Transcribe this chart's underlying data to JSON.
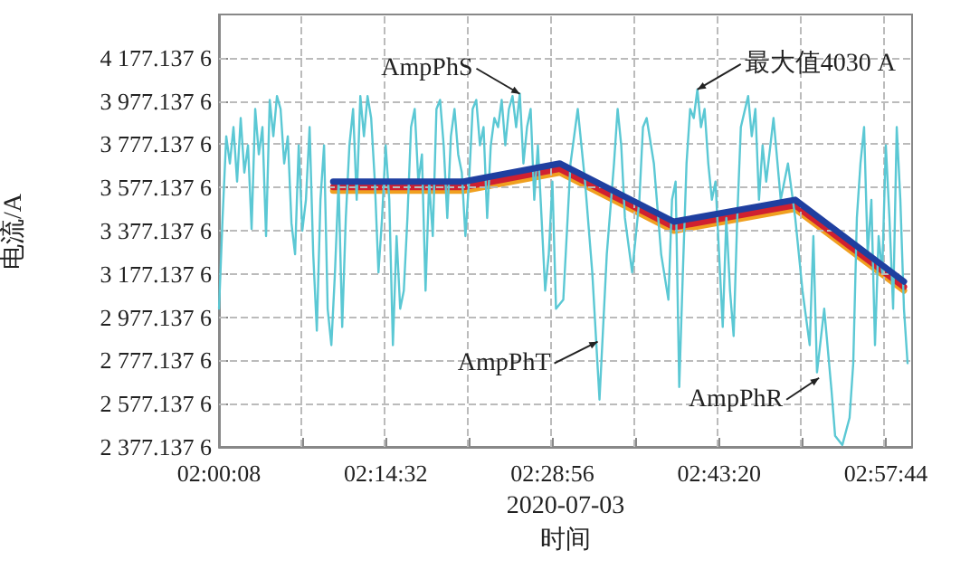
{
  "chart_data": {
    "type": "line",
    "xlabel": "时间",
    "ylabel": "电流/A",
    "annotations": [
      "2020-07-03",
      {
        "text": "AmpPhS",
        "x": 2.4353,
        "y": 4010
      },
      {
        "text": "最大值4030 A",
        "x": 2.6909,
        "y": 4030
      },
      {
        "text": "AmpPhT",
        "x": 2.5474,
        "y": 2864
      },
      {
        "text": "AmpPhR",
        "x": 2.866,
        "y": 2696
      }
    ],
    "xlim": [
      2.002222,
      3.0
    ],
    "xticks": [
      {
        "value": 2.002222,
        "label": "02:00:08"
      },
      {
        "value": 2.122222,
        "label": null
      },
      {
        "value": 2.242222,
        "label": "02:14:32"
      },
      {
        "value": 2.362222,
        "label": null
      },
      {
        "value": 2.482222,
        "label": "02:28:56"
      },
      {
        "value": 2.602222,
        "label": null
      },
      {
        "value": 2.722222,
        "label": "02:43:20"
      },
      {
        "value": 2.842222,
        "label": null
      },
      {
        "value": 2.962222,
        "label": "02:57:44"
      }
    ],
    "ylim": [
      2377.1376,
      4377.1376
    ],
    "yticks": [
      2377.1376,
      2577.1376,
      2777.1376,
      2977.1376,
      3177.1376,
      3377.1376,
      3577.1376,
      3777.1376,
      3977.1376,
      4177.1376
    ],
    "grid": true,
    "marker": "none",
    "line_style": "solid",
    "series": [
      {
        "color": "#5bc8d4",
        "x": [
          2.0023,
          2.0074,
          2.0127,
          2.0179,
          2.0231,
          2.0283,
          2.0335,
          2.0387,
          2.044,
          2.0492,
          2.0544,
          2.0596,
          2.0648,
          2.07,
          2.0753,
          2.0805,
          2.0857,
          2.0909,
          2.0961,
          2.1013,
          2.1066,
          2.1118,
          2.117,
          2.1222,
          2.1274,
          2.1327,
          2.1379,
          2.1431,
          2.1483,
          2.1535,
          2.1587,
          2.164,
          2.1692,
          2.1744,
          2.1796,
          2.1848,
          2.19,
          2.1953,
          2.2005,
          2.2057,
          2.2109,
          2.2161,
          2.2213,
          2.2266,
          2.2318,
          2.237,
          2.2422,
          2.2474,
          2.2526,
          2.2579,
          2.2631,
          2.2683,
          2.2735,
          2.2787,
          2.284,
          2.2892,
          2.2944,
          2.2996,
          2.3048,
          2.31,
          2.3153,
          2.3205,
          2.3257,
          2.3309,
          2.3361,
          2.3413,
          2.3466,
          2.3518,
          2.357,
          2.3622,
          2.3674,
          2.3726,
          2.3779,
          2.3831,
          2.3883,
          2.3935,
          2.3987,
          2.404,
          2.4092,
          2.4144,
          2.4196,
          2.4248,
          2.43,
          2.4353,
          2.4405,
          2.4457,
          2.4509,
          2.4561,
          2.4613,
          2.4666,
          2.4718,
          2.477,
          2.4822,
          2.4874,
          2.4979,
          2.5083,
          2.5187,
          2.5292,
          2.5396,
          2.55,
          2.5605,
          2.5709,
          2.5761,
          2.5813,
          2.5866,
          2.597,
          2.6074,
          2.6126,
          2.6179,
          2.6283,
          2.6388,
          2.6492,
          2.6544,
          2.6596,
          2.6648,
          2.67,
          2.6753,
          2.6805,
          2.6857,
          2.6909,
          2.6961,
          2.7013,
          2.7066,
          2.7118,
          2.717,
          2.7222,
          2.7274,
          2.7326,
          2.7379,
          2.7431,
          2.7483,
          2.7535,
          2.764,
          2.7692,
          2.7744,
          2.7796,
          2.7848,
          2.79,
          2.8005,
          2.8109,
          2.8213,
          2.8318,
          2.8422,
          2.8526,
          2.8579,
          2.8631,
          2.8735,
          2.884,
          2.8892,
          2.8996,
          2.91,
          2.9153,
          2.9205,
          2.9257,
          2.9309,
          2.9361,
          2.9414,
          2.9466,
          2.9518,
          2.957,
          2.9622,
          2.9674,
          2.9727,
          2.9779,
          2.9831,
          2.9883,
          2.9935
        ],
        "values": [
          3016,
          3436,
          3814,
          3688,
          3856,
          3604,
          3898,
          3646,
          3772,
          3385,
          3940,
          3730,
          3856,
          3352,
          3982,
          3814,
          4000,
          3940,
          3688,
          3814,
          3411,
          3268,
          3772,
          3377,
          3520,
          3856,
          3268,
          2915,
          3520,
          3772,
          3016,
          2848,
          3184,
          3604,
          2932,
          3436,
          3772,
          3940,
          3520,
          4000,
          3814,
          4000,
          3898,
          3604,
          3184,
          3436,
          3772,
          3520,
          2848,
          3352,
          3016,
          3100,
          3436,
          3856,
          3940,
          3604,
          3730,
          3100,
          3604,
          3352,
          3940,
          3982,
          3772,
          3436,
          3814,
          3940,
          3730,
          3646,
          3352,
          3604,
          3940,
          3982,
          3772,
          3856,
          3436,
          3772,
          3898,
          3856,
          3982,
          3772,
          3940,
          4000,
          3856,
          4010,
          3688,
          3856,
          3940,
          3520,
          3772,
          3436,
          3100,
          3268,
          3604,
          3016,
          3058,
          3688,
          3940,
          3604,
          3184,
          2596,
          3268,
          3688,
          3940,
          3772,
          3436,
          3184,
          3520,
          3856,
          3898,
          3688,
          3268,
          3058,
          3520,
          3604,
          2654,
          3184,
          3688,
          3940,
          3898,
          4030,
          3856,
          3940,
          3688,
          3520,
          3604,
          3268,
          2932,
          3436,
          3100,
          2890,
          3436,
          3856,
          4000,
          3814,
          3940,
          3520,
          3772,
          3604,
          3898,
          3520,
          3688,
          3436,
          3100,
          2848,
          3352,
          2722,
          3016,
          2638,
          2428,
          2386,
          2512,
          2764,
          3436,
          3688,
          3856,
          3268,
          3520,
          2848,
          3352,
          3184,
          3772,
          3436,
          3016,
          3856,
          3520,
          3016,
          2764
        ]
      },
      {
        "color": "#f0a020",
        "x": [
          2.1666,
          2.3544,
          2.4927,
          2.657,
          2.8317,
          2.9883
        ],
        "values": [
          3562,
          3562,
          3646,
          3377,
          3478,
          3100
        ]
      },
      {
        "color": "#d02030",
        "x": [
          2.1666,
          2.3544,
          2.4927,
          2.657,
          2.8317,
          2.9883
        ],
        "values": [
          3579,
          3579,
          3663,
          3394,
          3495,
          3117
        ]
      },
      {
        "color": "#1f3fa0",
        "x": [
          2.1666,
          2.3544,
          2.4927,
          2.657,
          2.8317,
          2.9883
        ],
        "values": [
          3604,
          3604,
          3688,
          3419,
          3520,
          3142
        ]
      }
    ]
  }
}
